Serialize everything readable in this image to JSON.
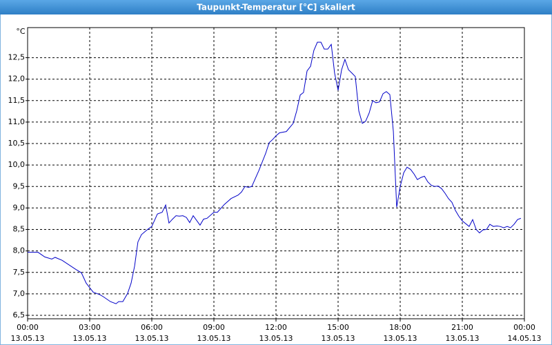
{
  "chart_data": {
    "type": "line",
    "title": "Taupunkt-Temperatur [°C] skaliert",
    "y_unit": "°C",
    "color": "#0000c8",
    "grid": true,
    "x": [
      0,
      0.5,
      0.83,
      1.17,
      1.33,
      1.67,
      2.33,
      2.6,
      2.83,
      3.17,
      3.5,
      3.67,
      4.0,
      4.27,
      4.4,
      4.6,
      4.83,
      5.0,
      5.17,
      5.33,
      5.5,
      5.77,
      6.0,
      6.27,
      6.5,
      6.67,
      6.83,
      7.0,
      7.17,
      7.33,
      7.5,
      7.67,
      7.83,
      8.0,
      8.33,
      8.5,
      8.67,
      9.0,
      9.17,
      9.5,
      9.83,
      10.17,
      10.33,
      10.5,
      10.67,
      10.83,
      11.17,
      11.5,
      11.67,
      11.83,
      12.0,
      12.17,
      12.5,
      12.83,
      13.0,
      13.17,
      13.33,
      13.5,
      13.67,
      13.83,
      14.0,
      14.17,
      14.33,
      14.5,
      14.67,
      14.83,
      15.0,
      15.17,
      15.33,
      15.5,
      15.67,
      15.83,
      16.0,
      16.17,
      16.33,
      16.5,
      16.67,
      16.83,
      17.0,
      17.17,
      17.33,
      17.5,
      17.67,
      17.83,
      18.0,
      18.17,
      18.33,
      18.5,
      18.67,
      18.83,
      19.0,
      19.17,
      19.33,
      19.5,
      19.67,
      19.83,
      20.0,
      20.17,
      20.33,
      20.5,
      20.67,
      20.83,
      21.0,
      21.33,
      21.5,
      21.67,
      21.83,
      22.0,
      22.17,
      22.33,
      22.5,
      22.67,
      22.83,
      23.0,
      23.17,
      23.33,
      23.5,
      23.67,
      23.83
    ],
    "values": [
      7.97,
      7.97,
      7.86,
      7.81,
      7.85,
      7.78,
      7.57,
      7.49,
      7.25,
      7.04,
      6.98,
      6.93,
      6.82,
      6.77,
      6.82,
      6.82,
      7.01,
      7.25,
      7.65,
      8.21,
      8.38,
      8.49,
      8.57,
      8.86,
      8.9,
      9.07,
      8.65,
      8.74,
      8.82,
      8.81,
      8.82,
      8.78,
      8.66,
      8.82,
      8.6,
      8.74,
      8.76,
      8.9,
      8.9,
      9.08,
      9.22,
      9.3,
      9.37,
      9.5,
      9.48,
      9.5,
      9.87,
      10.27,
      10.52,
      10.59,
      10.68,
      10.75,
      10.78,
      10.97,
      11.26,
      11.63,
      11.69,
      12.19,
      12.3,
      12.67,
      12.86,
      12.86,
      12.7,
      12.7,
      12.81,
      12.14,
      11.74,
      12.22,
      12.46,
      12.22,
      12.14,
      12.06,
      11.26,
      10.97,
      11.02,
      11.21,
      11.5,
      11.45,
      11.47,
      11.66,
      11.71,
      11.64,
      10.78,
      9.02,
      9.5,
      9.82,
      9.95,
      9.9,
      9.79,
      9.66,
      9.71,
      9.74,
      9.61,
      9.53,
      9.5,
      9.51,
      9.45,
      9.34,
      9.22,
      9.13,
      8.94,
      8.81,
      8.7,
      8.57,
      8.73,
      8.5,
      8.42,
      8.49,
      8.5,
      8.62,
      8.57,
      8.58,
      8.57,
      8.54,
      8.57,
      8.54,
      8.62,
      8.73,
      8.76
    ],
    "xlim": [
      0,
      24
    ],
    "xticks": [
      {
        "value": 0,
        "label": "00:00"
      },
      {
        "value": 3,
        "label": "03:00"
      },
      {
        "value": 6,
        "label": "06:00"
      },
      {
        "value": 9,
        "label": "09:00"
      },
      {
        "value": 12,
        "label": "12:00"
      },
      {
        "value": 15,
        "label": "15:00"
      },
      {
        "value": 18,
        "label": "18:00"
      },
      {
        "value": 21,
        "label": "21:00"
      },
      {
        "value": 24,
        "label": "00:00"
      }
    ],
    "xtick_dates": [
      "13.05.13",
      "13.05.13",
      "13.05.13",
      "13.05.13",
      "13.05.13",
      "13.05.13",
      "13.05.13",
      "13.05.13",
      "14.05.13"
    ],
    "ylim": [
      6.42,
      13.2
    ],
    "yticks": [
      {
        "value": 6.5,
        "label": "6,5"
      },
      {
        "value": 7,
        "label": "7,0"
      },
      {
        "value": 7.5,
        "label": "7,5"
      },
      {
        "value": 8,
        "label": "8,0"
      },
      {
        "value": 8.5,
        "label": "8,5"
      },
      {
        "value": 9,
        "label": "9,0"
      },
      {
        "value": 9.5,
        "label": "9,5"
      },
      {
        "value": 10,
        "label": "10,0"
      },
      {
        "value": 10.5,
        "label": "10,5"
      },
      {
        "value": 11,
        "label": "11,0"
      },
      {
        "value": 11.5,
        "label": "11,5"
      },
      {
        "value": 12,
        "label": "12,0"
      },
      {
        "value": 12.5,
        "label": "12,5"
      }
    ]
  }
}
